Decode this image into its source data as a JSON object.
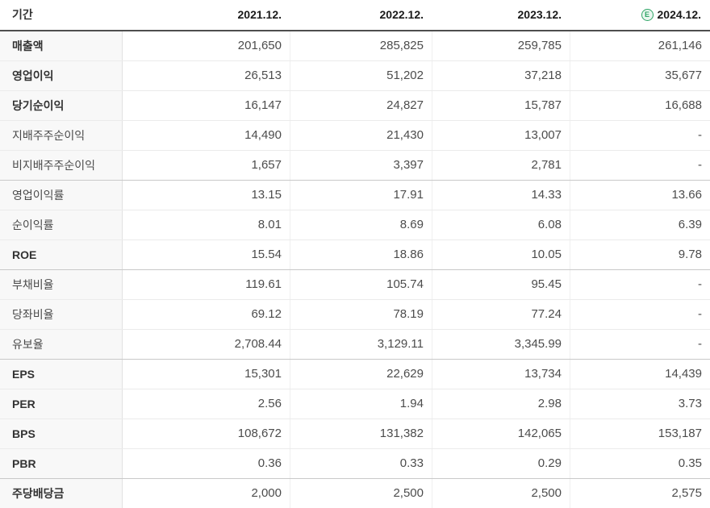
{
  "accent_colors": {
    "estimate_green": "#2fa566",
    "header_rule": "#4e4e4e",
    "label_column_bg": "#f8f8f8"
  },
  "chart_data": {
    "type": "table",
    "header": {
      "period_label": "기간",
      "years": [
        "2021.12.",
        "2022.12.",
        "2023.12.",
        "2024.12."
      ],
      "estimate": {
        "letter": "E",
        "applies_to": "2024.12.",
        "color": "#2fa566"
      }
    },
    "rows": [
      {
        "label": "매출액",
        "bold": true,
        "section_start": false,
        "values": [
          "201,650",
          "285,825",
          "259,785",
          "261,146"
        ]
      },
      {
        "label": "영업이익",
        "bold": true,
        "section_start": false,
        "values": [
          "26,513",
          "51,202",
          "37,218",
          "35,677"
        ]
      },
      {
        "label": "당기순이익",
        "bold": true,
        "section_start": false,
        "values": [
          "16,147",
          "24,827",
          "15,787",
          "16,688"
        ]
      },
      {
        "label": "지배주주순이익",
        "bold": false,
        "section_start": false,
        "values": [
          "14,490",
          "21,430",
          "13,007",
          "-"
        ]
      },
      {
        "label": "비지배주주순이익",
        "bold": false,
        "section_start": false,
        "values": [
          "1,657",
          "3,397",
          "2,781",
          "-"
        ]
      },
      {
        "label": "영업이익률",
        "bold": false,
        "section_start": true,
        "values": [
          "13.15",
          "17.91",
          "14.33",
          "13.66"
        ]
      },
      {
        "label": "순이익률",
        "bold": false,
        "section_start": false,
        "values": [
          "8.01",
          "8.69",
          "6.08",
          "6.39"
        ]
      },
      {
        "label": "ROE",
        "bold": true,
        "section_start": false,
        "values": [
          "15.54",
          "18.86",
          "10.05",
          "9.78"
        ]
      },
      {
        "label": "부채비율",
        "bold": false,
        "section_start": true,
        "values": [
          "119.61",
          "105.74",
          "95.45",
          "-"
        ]
      },
      {
        "label": "당좌비율",
        "bold": false,
        "section_start": false,
        "values": [
          "69.12",
          "78.19",
          "77.24",
          "-"
        ]
      },
      {
        "label": "유보율",
        "bold": false,
        "section_start": false,
        "values": [
          "2,708.44",
          "3,129.11",
          "3,345.99",
          "-"
        ]
      },
      {
        "label": "EPS",
        "bold": true,
        "section_start": true,
        "values": [
          "15,301",
          "22,629",
          "13,734",
          "14,439"
        ]
      },
      {
        "label": "PER",
        "bold": true,
        "section_start": false,
        "values": [
          "2.56",
          "1.94",
          "2.98",
          "3.73"
        ]
      },
      {
        "label": "BPS",
        "bold": true,
        "section_start": false,
        "values": [
          "108,672",
          "131,382",
          "142,065",
          "153,187"
        ]
      },
      {
        "label": "PBR",
        "bold": true,
        "section_start": false,
        "values": [
          "0.36",
          "0.33",
          "0.29",
          "0.35"
        ]
      },
      {
        "label": "주당배당금",
        "bold": true,
        "section_start": true,
        "values": [
          "2,000",
          "2,500",
          "2,500",
          "2,575"
        ]
      }
    ]
  }
}
